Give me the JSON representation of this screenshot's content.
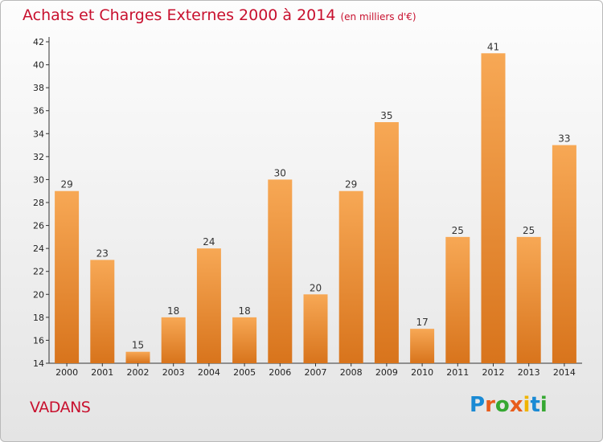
{
  "header": {
    "title": "Achats et Charges Externes 2000 à 2014",
    "unit": "(en milliers d'€)"
  },
  "footer": {
    "commune": "VADANS",
    "logo_text": "Proxiti",
    "logo_colors": [
      "#1a8ad4",
      "#e85d1c",
      "#36a832",
      "#e85d1c",
      "#f0b400",
      "#1a8ad4",
      "#36a832"
    ]
  },
  "colors": {
    "bar_light": "#f7a855",
    "bar_dark": "#d8741c",
    "title": "#c8102e"
  },
  "chart_data": {
    "type": "bar",
    "title": "Achats et Charges Externes 2000 à 2014",
    "categories": [
      "2000",
      "2001",
      "2002",
      "2003",
      "2004",
      "2005",
      "2006",
      "2007",
      "2008",
      "2009",
      "2010",
      "2011",
      "2012",
      "2013",
      "2014"
    ],
    "values": [
      29,
      23,
      15,
      18,
      24,
      18,
      30,
      20,
      29,
      35,
      17,
      25,
      41,
      25,
      33
    ],
    "xlabel": "",
    "ylabel": "",
    "ylim": [
      14,
      42
    ],
    "yticks": [
      14,
      16,
      18,
      20,
      22,
      24,
      26,
      28,
      30,
      32,
      34,
      36,
      38,
      40,
      42
    ],
    "grid": false,
    "legend": "none"
  }
}
